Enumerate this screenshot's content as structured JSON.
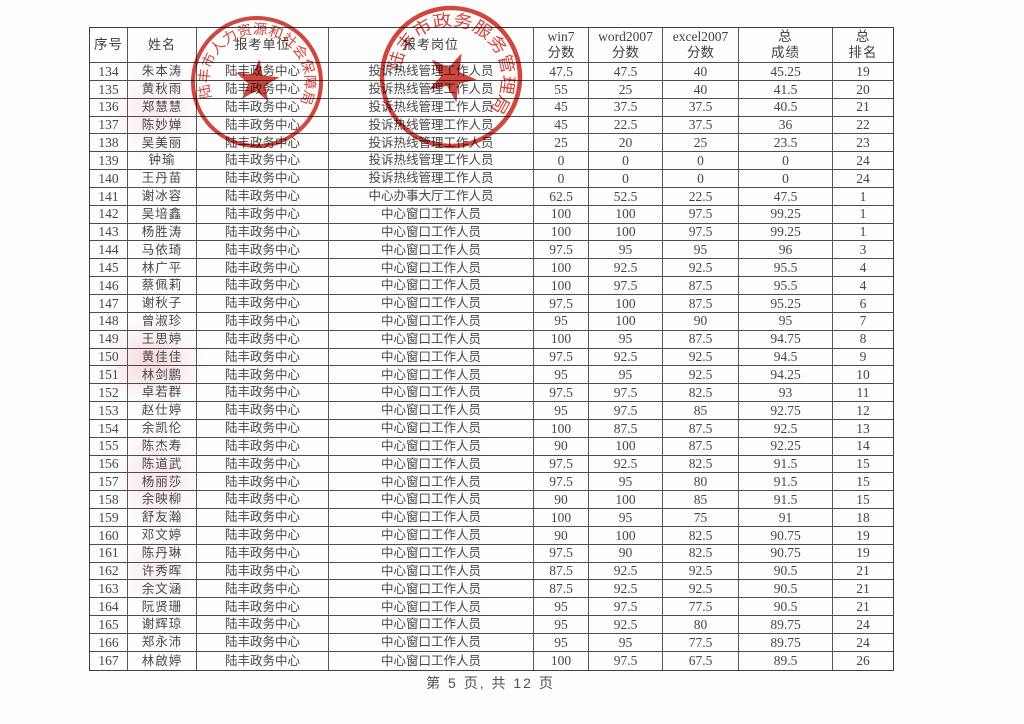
{
  "table": {
    "headers": [
      "序号",
      "姓名",
      "报考单位",
      "报考岗位",
      "win7\n分数",
      "word2007\n分数",
      "excel2007\n分数",
      "总\n成绩",
      "总\n排名"
    ],
    "rows": [
      [
        "134",
        "朱本涛",
        "陆丰政务中心",
        "投诉热线管理工作人员",
        "47.5",
        "47.5",
        "40",
        "45.25",
        "19"
      ],
      [
        "135",
        "黄秋雨",
        "陆丰政务中心",
        "投诉热线管理工作人员",
        "55",
        "25",
        "40",
        "41.5",
        "20"
      ],
      [
        "136",
        "郑慧慧",
        "陆丰政务中心",
        "投诉热线管理工作人员",
        "45",
        "37.5",
        "37.5",
        "40.5",
        "21"
      ],
      [
        "137",
        "陈妙婵",
        "陆丰政务中心",
        "投诉热线管理工作人员",
        "45",
        "22.5",
        "37.5",
        "36",
        "22"
      ],
      [
        "138",
        "吴美丽",
        "陆丰政务中心",
        "投诉热线管理工作人员",
        "25",
        "20",
        "25",
        "23.5",
        "23"
      ],
      [
        "139",
        "钟瑜",
        "陆丰政务中心",
        "投诉热线管理工作人员",
        "0",
        "0",
        "0",
        "0",
        "24"
      ],
      [
        "140",
        "王丹苗",
        "陆丰政务中心",
        "投诉热线管理工作人员",
        "0",
        "0",
        "0",
        "0",
        "24"
      ],
      [
        "141",
        "谢冰容",
        "陆丰政务中心",
        "中心办事大厅工作人员",
        "62.5",
        "52.5",
        "22.5",
        "47.5",
        "1"
      ],
      [
        "142",
        "吴培鑫",
        "陆丰政务中心",
        "中心窗口工作人员",
        "100",
        "100",
        "97.5",
        "99.25",
        "1"
      ],
      [
        "143",
        "杨胜涛",
        "陆丰政务中心",
        "中心窗口工作人员",
        "100",
        "100",
        "97.5",
        "99.25",
        "1"
      ],
      [
        "144",
        "马依琦",
        "陆丰政务中心",
        "中心窗口工作人员",
        "97.5",
        "95",
        "95",
        "96",
        "3"
      ],
      [
        "145",
        "林广平",
        "陆丰政务中心",
        "中心窗口工作人员",
        "100",
        "92.5",
        "92.5",
        "95.5",
        "4"
      ],
      [
        "146",
        "蔡佩莉",
        "陆丰政务中心",
        "中心窗口工作人员",
        "100",
        "97.5",
        "87.5",
        "95.5",
        "4"
      ],
      [
        "147",
        "谢秋子",
        "陆丰政务中心",
        "中心窗口工作人员",
        "97.5",
        "100",
        "87.5",
        "95.25",
        "6"
      ],
      [
        "148",
        "曾淑珍",
        "陆丰政务中心",
        "中心窗口工作人员",
        "95",
        "100",
        "90",
        "95",
        "7"
      ],
      [
        "149",
        "王思婷",
        "陆丰政务中心",
        "中心窗口工作人员",
        "100",
        "95",
        "87.5",
        "94.75",
        "8"
      ],
      [
        "150",
        "黄佳佳",
        "陆丰政务中心",
        "中心窗口工作人员",
        "97.5",
        "92.5",
        "92.5",
        "94.5",
        "9"
      ],
      [
        "151",
        "林剑鹏",
        "陆丰政务中心",
        "中心窗口工作人员",
        "95",
        "95",
        "92.5",
        "94.25",
        "10"
      ],
      [
        "152",
        "卓若群",
        "陆丰政务中心",
        "中心窗口工作人员",
        "97.5",
        "97.5",
        "82.5",
        "93",
        "11"
      ],
      [
        "153",
        "赵仕婷",
        "陆丰政务中心",
        "中心窗口工作人员",
        "95",
        "97.5",
        "85",
        "92.75",
        "12"
      ],
      [
        "154",
        "余凯伦",
        "陆丰政务中心",
        "中心窗口工作人员",
        "100",
        "87.5",
        "87.5",
        "92.5",
        "13"
      ],
      [
        "155",
        "陈杰寿",
        "陆丰政务中心",
        "中心窗口工作人员",
        "90",
        "100",
        "87.5",
        "92.25",
        "14"
      ],
      [
        "156",
        "陈道武",
        "陆丰政务中心",
        "中心窗口工作人员",
        "97.5",
        "92.5",
        "82.5",
        "91.5",
        "15"
      ],
      [
        "157",
        "杨丽莎",
        "陆丰政务中心",
        "中心窗口工作人员",
        "97.5",
        "95",
        "80",
        "91.5",
        "15"
      ],
      [
        "158",
        "余映柳",
        "陆丰政务中心",
        "中心窗口工作人员",
        "90",
        "100",
        "85",
        "91.5",
        "15"
      ],
      [
        "159",
        "舒友瀚",
        "陆丰政务中心",
        "中心窗口工作人员",
        "100",
        "95",
        "75",
        "91",
        "18"
      ],
      [
        "160",
        "邓文婷",
        "陆丰政务中心",
        "中心窗口工作人员",
        "90",
        "100",
        "82.5",
        "90.75",
        "19"
      ],
      [
        "161",
        "陈丹琳",
        "陆丰政务中心",
        "中心窗口工作人员",
        "97.5",
        "90",
        "82.5",
        "90.75",
        "19"
      ],
      [
        "162",
        "许秀晖",
        "陆丰政务中心",
        "中心窗口工作人员",
        "87.5",
        "92.5",
        "92.5",
        "90.5",
        "21"
      ],
      [
        "163",
        "余文涵",
        "陆丰政务中心",
        "中心窗口工作人员",
        "87.5",
        "92.5",
        "92.5",
        "90.5",
        "21"
      ],
      [
        "164",
        "阮贤珊",
        "陆丰政务中心",
        "中心窗口工作人员",
        "95",
        "97.5",
        "77.5",
        "90.5",
        "21"
      ],
      [
        "165",
        "谢辉琼",
        "陆丰政务中心",
        "中心窗口工作人员",
        "95",
        "92.5",
        "80",
        "89.75",
        "24"
      ],
      [
        "166",
        "郑永沛",
        "陆丰政务中心",
        "中心窗口工作人员",
        "95",
        "95",
        "77.5",
        "89.75",
        "24"
      ],
      [
        "167",
        "林啟婷",
        "陆丰政务中心",
        "中心窗口工作人员",
        "100",
        "97.5",
        "67.5",
        "89.5",
        "26"
      ]
    ]
  },
  "footer": {
    "page_info": "第 5 页, 共 12 页"
  },
  "stamps": {
    "color": "#cb2d24",
    "left_seal_text": "陆丰市人力资源和社会保障局",
    "right_seal_text": "陆丰市政务服务管理局"
  }
}
